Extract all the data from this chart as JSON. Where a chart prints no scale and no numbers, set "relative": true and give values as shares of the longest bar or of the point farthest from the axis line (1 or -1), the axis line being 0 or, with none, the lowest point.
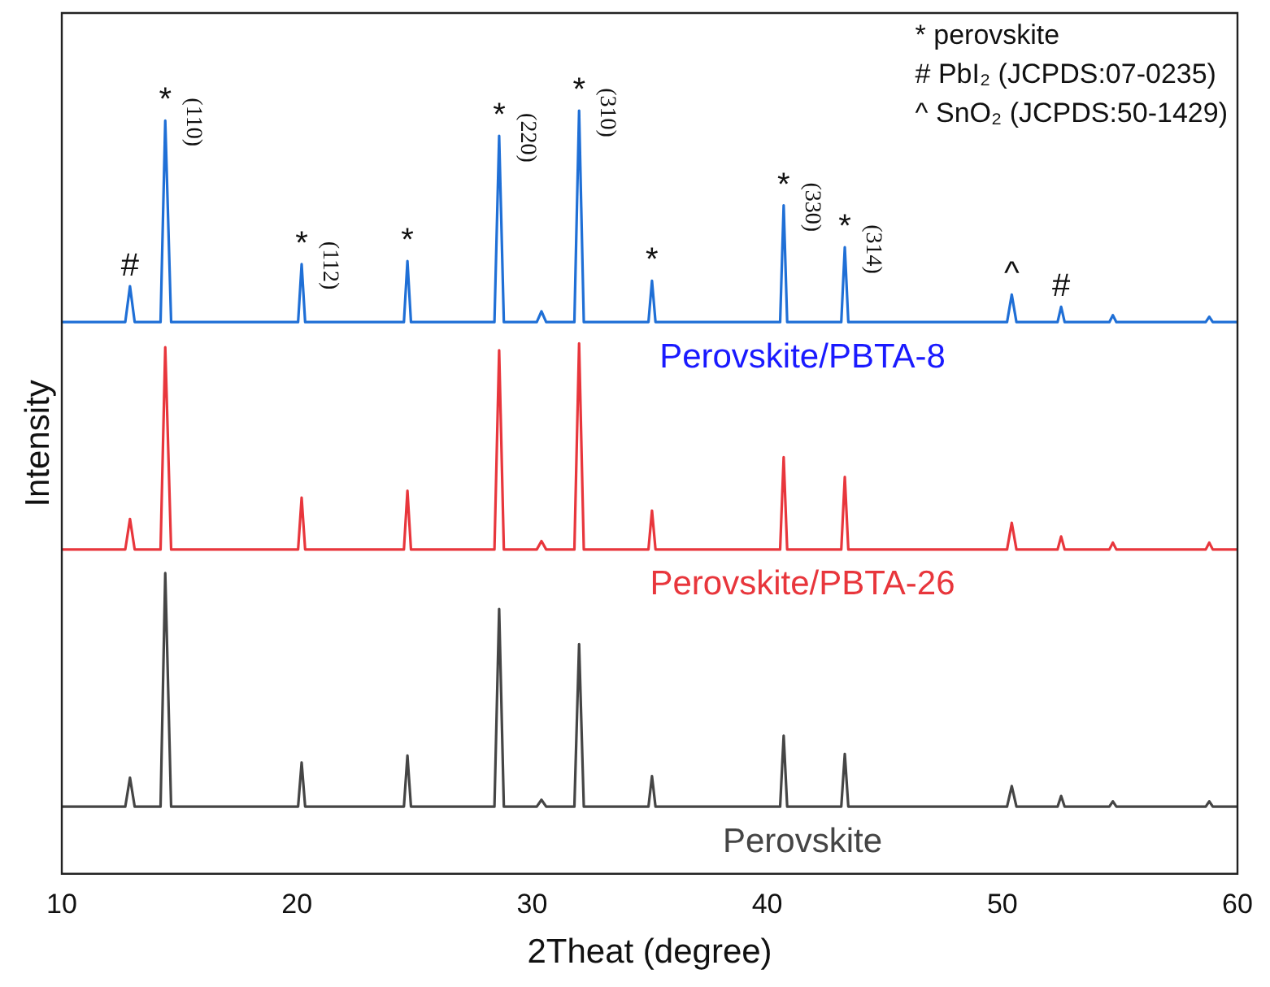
{
  "chart_data": {
    "type": "line",
    "relative": true,
    "xlabel": "2Theat (degree)",
    "ylabel": "Intensity",
    "xlim": [
      10,
      60
    ],
    "xticks": [
      10,
      20,
      30,
      40,
      50,
      60
    ],
    "grid": false,
    "legend": false,
    "marker": "none",
    "line_style": "solid",
    "x": [
      10,
      12.7,
      12.9,
      13.1,
      14.2,
      14.4,
      14.65,
      20.05,
      20.2,
      20.35,
      24.55,
      24.7,
      24.85,
      28.4,
      28.6,
      28.8,
      30.2,
      30.4,
      30.6,
      31.8,
      32.0,
      32.2,
      34.95,
      35.1,
      35.25,
      40.55,
      40.7,
      40.85,
      43.15,
      43.3,
      43.45,
      50.2,
      50.4,
      50.6,
      52.35,
      52.5,
      52.65,
      54.55,
      54.7,
      54.85,
      58.65,
      58.8,
      58.95,
      60
    ],
    "series": [
      {
        "name": "Perovskite/PBTA-8",
        "color": "#1f6fd6",
        "values": [
          0.723,
          0.723,
          0.77,
          0.723,
          0.723,
          0.987,
          0.723,
          0.723,
          0.799,
          0.723,
          0.723,
          0.803,
          0.723,
          0.723,
          0.967,
          0.723,
          0.723,
          0.737,
          0.723,
          0.723,
          1,
          0.723,
          0.723,
          0.777,
          0.723,
          0.723,
          0.876,
          0.723,
          0.723,
          0.821,
          0.723,
          0.723,
          0.759,
          0.723,
          0.723,
          0.743,
          0.723,
          0.723,
          0.732,
          0.723,
          0.723,
          0.73,
          0.723,
          0.723
        ]
      },
      {
        "name": "Perovskite/PBTA-26",
        "color": "#e8363c",
        "values": [
          0.425,
          0.425,
          0.465,
          0.425,
          0.425,
          0.69,
          0.425,
          0.425,
          0.493,
          0.425,
          0.425,
          0.502,
          0.425,
          0.425,
          0.686,
          0.425,
          0.425,
          0.436,
          0.425,
          0.425,
          0.695,
          0.425,
          0.425,
          0.476,
          0.425,
          0.425,
          0.546,
          0.425,
          0.425,
          0.52,
          0.425,
          0.425,
          0.46,
          0.425,
          0.425,
          0.442,
          0.425,
          0.425,
          0.434,
          0.425,
          0.425,
          0.434,
          0.425,
          0.425
        ]
      },
      {
        "name": "Perovskite",
        "color": "#454545",
        "values": [
          0.088,
          0.088,
          0.126,
          0.088,
          0.088,
          0.394,
          0.088,
          0.088,
          0.146,
          0.088,
          0.088,
          0.155,
          0.088,
          0.088,
          0.347,
          0.088,
          0.088,
          0.097,
          0.088,
          0.088,
          0.301,
          0.088,
          0.088,
          0.128,
          0.088,
          0.088,
          0.181,
          0.088,
          0.088,
          0.157,
          0.088,
          0.088,
          0.115,
          0.088,
          0.088,
          0.102,
          0.088,
          0.088,
          0.095,
          0.088,
          0.088,
          0.095,
          0.088,
          0.088
        ]
      }
    ],
    "annotations": [
      "*  perovskite",
      "#  PbI₂ (JCPDS:07-0235)",
      "^ SnO₂ (JCPDS:50-1429)",
      {
        "text": "#",
        "x": 12.9,
        "y": 0.77
      },
      {
        "text": "*",
        "x": 14.4,
        "y": 0.987
      },
      {
        "text": "(110)",
        "x": 14.4,
        "y": 0.987
      },
      {
        "text": "*",
        "x": 20.2,
        "y": 0.799
      },
      {
        "text": "(112)",
        "x": 20.2,
        "y": 0.799
      },
      {
        "text": "*",
        "x": 24.7,
        "y": 0.803
      },
      {
        "text": "*",
        "x": 28.6,
        "y": 0.967
      },
      {
        "text": "(220)",
        "x": 28.6,
        "y": 0.967
      },
      {
        "text": "*",
        "x": 32.0,
        "y": 1
      },
      {
        "text": "(310)",
        "x": 32.0,
        "y": 1
      },
      {
        "text": "*",
        "x": 35.1,
        "y": 0.777
      },
      {
        "text": "*",
        "x": 40.7,
        "y": 0.876
      },
      {
        "text": "(330)",
        "x": 40.7,
        "y": 0.876
      },
      {
        "text": "*",
        "x": 43.3,
        "y": 0.821
      },
      {
        "text": "(314)",
        "x": 43.3,
        "y": 0.821
      },
      {
        "text": "^",
        "x": 50.4,
        "y": 0.759
      },
      {
        "text": "#",
        "x": 52.5,
        "y": 0.743
      }
    ]
  }
}
